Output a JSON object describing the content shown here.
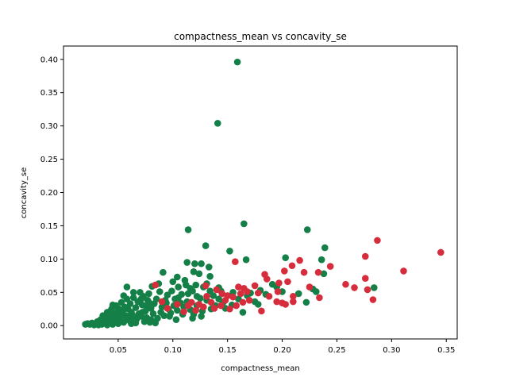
{
  "chart_data": {
    "type": "scatter",
    "title": "compactness_mean vs concavity_se",
    "xlabel": "compactness_mean",
    "ylabel": "concavity_se",
    "xlim": [
      0.0,
      0.36
    ],
    "ylim": [
      -0.02,
      0.42
    ],
    "x_ticks": [
      "0.05",
      "0.10",
      "0.15",
      "0.20",
      "0.25",
      "0.30",
      "0.35"
    ],
    "y_ticks": [
      "0.00",
      "0.05",
      "0.10",
      "0.15",
      "0.20",
      "0.25",
      "0.30",
      "0.35",
      "0.40"
    ],
    "grid": false,
    "series": [
      {
        "color": "#148048",
        "points": [
          [
            0.159,
            0.396
          ],
          [
            0.141,
            0.304
          ],
          [
            0.165,
            0.153
          ],
          [
            0.114,
            0.144
          ],
          [
            0.223,
            0.144
          ],
          [
            0.13,
            0.12
          ],
          [
            0.239,
            0.117
          ],
          [
            0.152,
            0.112
          ],
          [
            0.203,
            0.102
          ],
          [
            0.236,
            0.099
          ],
          [
            0.167,
            0.099
          ],
          [
            0.12,
            0.093
          ],
          [
            0.126,
            0.093
          ],
          [
            0.113,
            0.095
          ],
          [
            0.133,
            0.088
          ],
          [
            0.091,
            0.08
          ],
          [
            0.119,
            0.081
          ],
          [
            0.124,
            0.078
          ],
          [
            0.134,
            0.074
          ],
          [
            0.104,
            0.073
          ],
          [
            0.111,
            0.068
          ],
          [
            0.1,
            0.066
          ],
          [
            0.087,
            0.063
          ],
          [
            0.081,
            0.059
          ],
          [
            0.058,
            0.058
          ],
          [
            0.121,
            0.061
          ],
          [
            0.131,
            0.063
          ],
          [
            0.238,
            0.078
          ],
          [
            0.228,
            0.055
          ],
          [
            0.231,
            0.051
          ],
          [
            0.284,
            0.057
          ],
          [
            0.215,
            0.048
          ],
          [
            0.222,
            0.035
          ],
          [
            0.195,
            0.058
          ],
          [
            0.2,
            0.051
          ],
          [
            0.18,
            0.053
          ],
          [
            0.171,
            0.049
          ],
          [
            0.164,
            0.02
          ],
          [
            0.15,
            0.045
          ],
          [
            0.146,
            0.035
          ],
          [
            0.142,
            0.04
          ],
          [
            0.139,
            0.03
          ],
          [
            0.135,
            0.025
          ],
          [
            0.125,
            0.041
          ],
          [
            0.118,
            0.052
          ],
          [
            0.108,
            0.047
          ],
          [
            0.102,
            0.04
          ],
          [
            0.095,
            0.046
          ],
          [
            0.094,
            0.034
          ],
          [
            0.09,
            0.028
          ],
          [
            0.088,
            0.051
          ],
          [
            0.085,
            0.04
          ],
          [
            0.083,
            0.033
          ],
          [
            0.08,
            0.026
          ],
          [
            0.078,
            0.048
          ],
          [
            0.077,
            0.038
          ],
          [
            0.075,
            0.022
          ],
          [
            0.073,
            0.044
          ],
          [
            0.072,
            0.031
          ],
          [
            0.07,
            0.05
          ],
          [
            0.069,
            0.018
          ],
          [
            0.068,
            0.036
          ],
          [
            0.066,
            0.027
          ],
          [
            0.065,
            0.012
          ],
          [
            0.064,
            0.042
          ],
          [
            0.062,
            0.02
          ],
          [
            0.061,
            0.033
          ],
          [
            0.06,
            0.008
          ],
          [
            0.059,
            0.025
          ],
          [
            0.058,
            0.04
          ],
          [
            0.057,
            0.015
          ],
          [
            0.056,
            0.028
          ],
          [
            0.055,
            0.005
          ],
          [
            0.054,
            0.02
          ],
          [
            0.053,
            0.035
          ],
          [
            0.052,
            0.01
          ],
          [
            0.051,
            0.024
          ],
          [
            0.05,
            0.003
          ],
          [
            0.049,
            0.015
          ],
          [
            0.048,
            0.03
          ],
          [
            0.047,
            0.008
          ],
          [
            0.046,
            0.019
          ],
          [
            0.045,
            0.002
          ],
          [
            0.044,
            0.012
          ],
          [
            0.043,
            0.022
          ],
          [
            0.042,
            0.006
          ],
          [
            0.041,
            0.016
          ],
          [
            0.04,
            0.001
          ],
          [
            0.039,
            0.01
          ],
          [
            0.038,
            0.004
          ],
          [
            0.037,
            0.013
          ],
          [
            0.036,
            0.007
          ],
          [
            0.035,
            0.002
          ],
          [
            0.034,
            0.009
          ],
          [
            0.033,
            0.004
          ],
          [
            0.032,
            0.001
          ],
          [
            0.031,
            0.006
          ],
          [
            0.03,
            0.003
          ],
          [
            0.028,
            0.001
          ],
          [
            0.026,
            0.004
          ],
          [
            0.024,
            0.002
          ],
          [
            0.022,
            0.003
          ],
          [
            0.02,
            0.002
          ],
          [
            0.045,
            0.031
          ],
          [
            0.05,
            0.026
          ],
          [
            0.063,
            0.016
          ],
          [
            0.067,
            0.01
          ],
          [
            0.071,
            0.014
          ],
          [
            0.074,
            0.006
          ],
          [
            0.076,
            0.012
          ],
          [
            0.079,
            0.005
          ],
          [
            0.082,
            0.018
          ],
          [
            0.086,
            0.011
          ],
          [
            0.089,
            0.02
          ],
          [
            0.092,
            0.015
          ],
          [
            0.096,
            0.025
          ],
          [
            0.098,
            0.019
          ],
          [
            0.101,
            0.03
          ],
          [
            0.104,
            0.023
          ],
          [
            0.107,
            0.034
          ],
          [
            0.11,
            0.028
          ],
          [
            0.113,
            0.036
          ],
          [
            0.116,
            0.024
          ],
          [
            0.119,
            0.017
          ],
          [
            0.122,
            0.03
          ],
          [
            0.127,
            0.022
          ],
          [
            0.131,
            0.038
          ],
          [
            0.137,
            0.045
          ],
          [
            0.144,
            0.052
          ],
          [
            0.148,
            0.026
          ],
          [
            0.154,
            0.031
          ],
          [
            0.16,
            0.04
          ],
          [
            0.168,
            0.045
          ],
          [
            0.175,
            0.036
          ],
          [
            0.185,
            0.047
          ],
          [
            0.191,
            0.062
          ],
          [
            0.099,
            0.052
          ],
          [
            0.105,
            0.058
          ],
          [
            0.112,
            0.061
          ],
          [
            0.116,
            0.056
          ],
          [
            0.128,
            0.058
          ],
          [
            0.134,
            0.052
          ],
          [
            0.062,
            0.003
          ],
          [
            0.058,
            0.012
          ],
          [
            0.052,
            0.018
          ],
          [
            0.048,
            0.007
          ],
          [
            0.044,
            0.025
          ],
          [
            0.04,
            0.02
          ],
          [
            0.036,
            0.015
          ],
          [
            0.08,
            0.009
          ],
          [
            0.084,
            0.004
          ],
          [
            0.076,
            0.03
          ],
          [
            0.072,
            0.02
          ],
          [
            0.066,
            0.004
          ],
          [
            0.103,
            0.009
          ],
          [
            0.097,
            0.014
          ],
          [
            0.109,
            0.017
          ],
          [
            0.118,
            0.011
          ],
          [
            0.126,
            0.014
          ],
          [
            0.055,
            0.045
          ],
          [
            0.064,
            0.05
          ],
          [
            0.071,
            0.04
          ],
          [
            0.078,
            0.035
          ],
          [
            0.093,
            0.038
          ],
          [
            0.105,
            0.042
          ],
          [
            0.114,
            0.048
          ],
          [
            0.122,
            0.044
          ],
          [
            0.142,
            0.057
          ],
          [
            0.155,
            0.05
          ],
          [
            0.178,
            0.032
          ]
        ]
      },
      {
        "color": "#d62d3c",
        "points": [
          [
            0.345,
            0.11
          ],
          [
            0.287,
            0.128
          ],
          [
            0.276,
            0.104
          ],
          [
            0.311,
            0.082
          ],
          [
            0.209,
            0.09
          ],
          [
            0.216,
            0.098
          ],
          [
            0.244,
            0.089
          ],
          [
            0.202,
            0.082
          ],
          [
            0.22,
            0.08
          ],
          [
            0.233,
            0.08
          ],
          [
            0.197,
            0.064
          ],
          [
            0.205,
            0.066
          ],
          [
            0.184,
            0.077
          ],
          [
            0.186,
            0.07
          ],
          [
            0.157,
            0.096
          ],
          [
            0.16,
            0.058
          ],
          [
            0.165,
            0.056
          ],
          [
            0.175,
            0.06
          ],
          [
            0.178,
            0.049
          ],
          [
            0.258,
            0.062
          ],
          [
            0.266,
            0.057
          ],
          [
            0.276,
            0.071
          ],
          [
            0.278,
            0.054
          ],
          [
            0.283,
            0.039
          ],
          [
            0.234,
            0.042
          ],
          [
            0.21,
            0.044
          ],
          [
            0.21,
            0.036
          ],
          [
            0.2,
            0.034
          ],
          [
            0.195,
            0.036
          ],
          [
            0.203,
            0.032
          ],
          [
            0.181,
            0.022
          ],
          [
            0.17,
            0.038
          ],
          [
            0.164,
            0.035
          ],
          [
            0.158,
            0.03
          ],
          [
            0.155,
            0.043
          ],
          [
            0.152,
            0.025
          ],
          [
            0.148,
            0.038
          ],
          [
            0.144,
            0.03
          ],
          [
            0.138,
            0.026
          ],
          [
            0.135,
            0.035
          ],
          [
            0.131,
            0.044
          ],
          [
            0.13,
            0.06
          ],
          [
            0.128,
            0.028
          ],
          [
            0.124,
            0.032
          ],
          [
            0.121,
            0.023
          ],
          [
            0.117,
            0.035
          ],
          [
            0.114,
            0.03
          ],
          [
            0.11,
            0.021
          ],
          [
            0.104,
            0.032
          ],
          [
            0.095,
            0.026
          ],
          [
            0.084,
            0.061
          ],
          [
            0.14,
            0.054
          ],
          [
            0.145,
            0.048
          ],
          [
            0.15,
            0.045
          ],
          [
            0.162,
            0.048
          ],
          [
            0.168,
            0.051
          ],
          [
            0.188,
            0.044
          ],
          [
            0.196,
            0.051
          ],
          [
            0.09,
            0.036
          ],
          [
            0.225,
            0.058
          ]
        ]
      }
    ]
  }
}
